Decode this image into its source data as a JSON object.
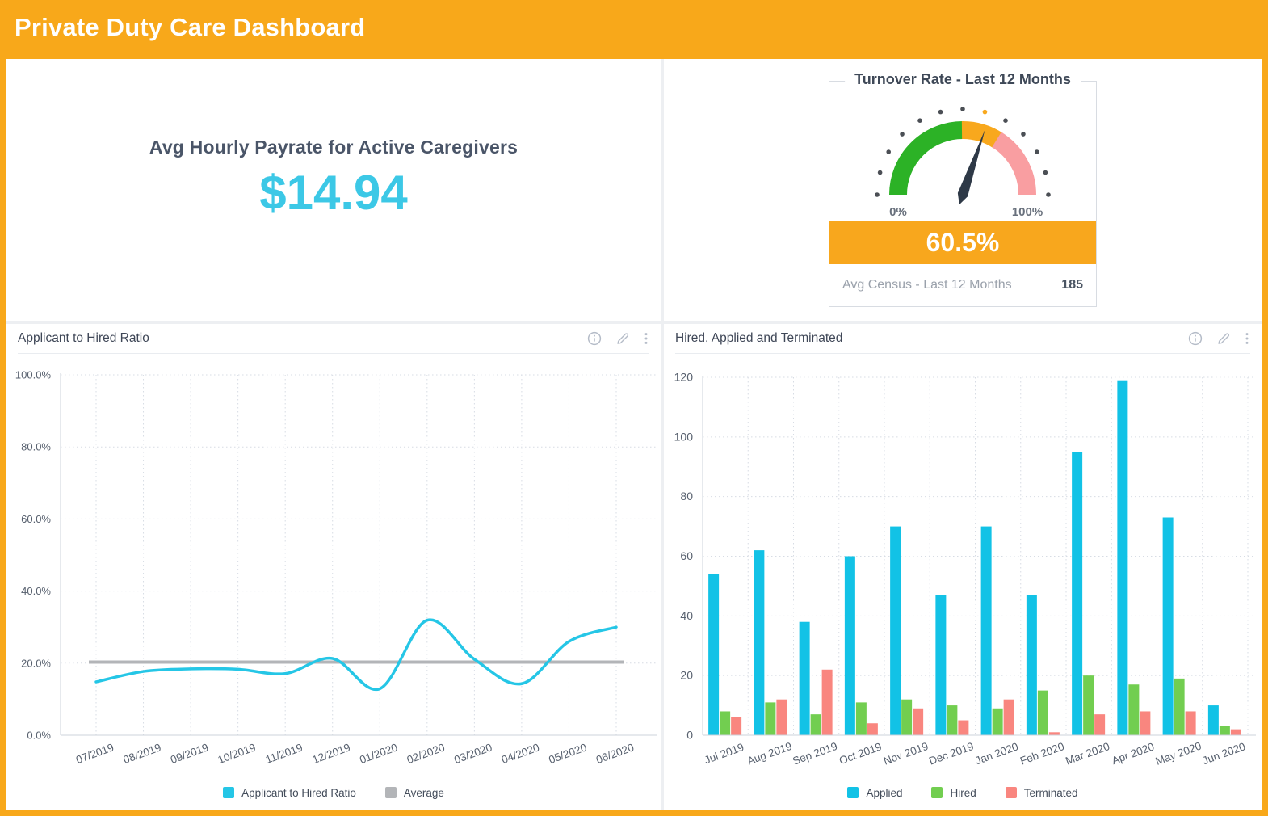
{
  "header": {
    "title": "Private Duty Care Dashboard"
  },
  "panels": {
    "payrate": {
      "title": "Avg Hourly Payrate for Active Caregivers",
      "value": "$14.94",
      "value_color": "#3cc8e6"
    },
    "turnover": {
      "title": "Turnover Rate - Last 12 Months",
      "value_pct": 60.5,
      "value_label": "60.5%",
      "min_label": "0%",
      "max_label": "100%",
      "census_label": "Avg Census - Last 12 Months",
      "census_value": "185",
      "segments": [
        {
          "from": 0,
          "to": 50,
          "color": "#2cb226"
        },
        {
          "from": 50,
          "to": 68,
          "color": "#f8a81d"
        },
        {
          "from": 68,
          "to": 100,
          "color": "#f99ea1"
        }
      ],
      "tick_dot_count": 13,
      "highlight_dot_index": 7,
      "dot_color": "#4b4f55",
      "highlight_dot_color": "#f8a81d",
      "needle_color": "#2e3947",
      "banner_color": "#f8a71d",
      "label_color": "#68707c"
    }
  },
  "chart_data": [
    {
      "type": "line",
      "title": "Applicant to Hired Ratio",
      "x": [
        "07/2019",
        "08/2019",
        "09/2019",
        "10/2019",
        "11/2019",
        "12/2019",
        "01/2020",
        "02/2020",
        "03/2020",
        "04/2020",
        "05/2020",
        "06/2020"
      ],
      "series": [
        {
          "name": "Applicant to Hired Ratio",
          "color": "#25c6e6",
          "values": [
            14.8,
            17.7,
            18.4,
            18.3,
            17.1,
            21.3,
            12.9,
            31.9,
            21.1,
            14.3,
            26.0,
            30.0
          ]
        }
      ],
      "average_line": {
        "name": "Average",
        "color": "#b3b5b8",
        "value": 20.3
      },
      "ylim": [
        0,
        100
      ],
      "yticks": [
        0,
        20,
        40,
        60,
        80,
        100
      ],
      "ytick_labels": [
        "0.0%",
        "20.0%",
        "40.0%",
        "60.0%",
        "80.0%",
        "100.0%"
      ],
      "grid": true,
      "legend_position": "bottom"
    },
    {
      "type": "bar",
      "title": "Hired, Applied and Terminated",
      "categories": [
        "Jul 2019",
        "Aug 2019",
        "Sep 2019",
        "Oct 2019",
        "Nov 2019",
        "Dec 2019",
        "Jan 2020",
        "Feb 2020",
        "Mar 2020",
        "Apr 2020",
        "May 2020",
        "Jun 2020"
      ],
      "series": [
        {
          "name": "Applied",
          "color": "#12c2e6",
          "values": [
            54,
            62,
            38,
            60,
            70,
            47,
            70,
            47,
            95,
            119,
            73,
            10
          ]
        },
        {
          "name": "Hired",
          "color": "#72ce50",
          "values": [
            8,
            11,
            7,
            11,
            12,
            10,
            9,
            15,
            20,
            17,
            19,
            3
          ]
        },
        {
          "name": "Terminated",
          "color": "#f9867f",
          "values": [
            6,
            12,
            22,
            4,
            9,
            5,
            12,
            1,
            7,
            8,
            8,
            2
          ]
        }
      ],
      "ylim": [
        0,
        120
      ],
      "yticks": [
        0,
        20,
        40,
        60,
        80,
        100,
        120
      ],
      "ytick_labels": [
        "0",
        "20",
        "40",
        "60",
        "80",
        "100",
        "120"
      ],
      "grid": true,
      "legend_position": "bottom"
    }
  ]
}
